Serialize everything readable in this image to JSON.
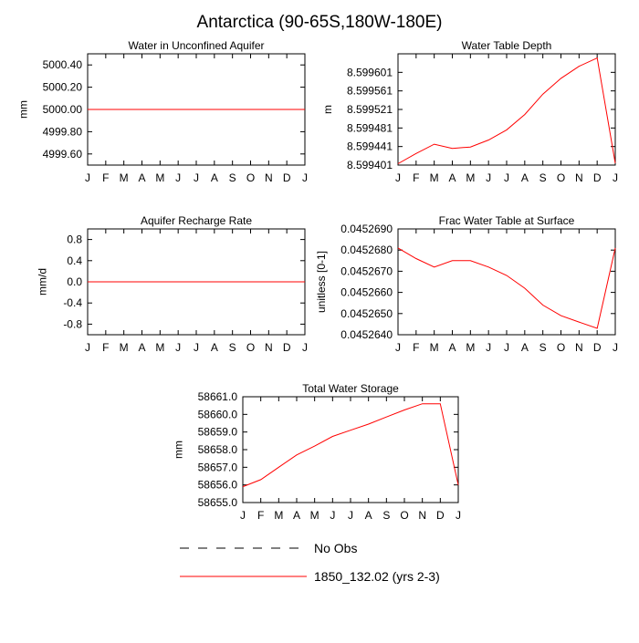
{
  "title": "Antarctica (90-65S,180W-180E)",
  "colors": {
    "model": "#ff0000",
    "obs": "#000000",
    "axis": "#000000"
  },
  "legend": {
    "items": [
      {
        "label": "No Obs",
        "style": "dashed",
        "color": "#000000"
      },
      {
        "label": "1850_132.02 (yrs 2-3)",
        "style": "solid",
        "color": "#ff0000"
      }
    ]
  },
  "chart_data": [
    {
      "type": "line",
      "title": "Water in Unconfined Aquifer",
      "ylabel": "mm",
      "xlabel": "",
      "categories": [
        "J",
        "F",
        "M",
        "A",
        "M",
        "J",
        "J",
        "A",
        "S",
        "O",
        "N",
        "D",
        "J"
      ],
      "ylim": [
        4999.5,
        5000.5
      ],
      "yticks": [
        4999.6,
        4999.8,
        5000.0,
        5000.2,
        5000.4
      ],
      "ytick_labels": [
        "4999.60",
        "4999.80",
        "5000.00",
        "5000.20",
        "5000.40"
      ],
      "series": [
        {
          "name": "1850_132.02 (yrs 2-3)",
          "values": [
            5000.0,
            5000.0,
            5000.0,
            5000.0,
            5000.0,
            5000.0,
            5000.0,
            5000.0,
            5000.0,
            5000.0,
            5000.0,
            5000.0,
            5000.0
          ]
        }
      ]
    },
    {
      "type": "line",
      "title": "Water Table Depth",
      "ylabel": "m",
      "xlabel": "",
      "categories": [
        "J",
        "F",
        "M",
        "A",
        "M",
        "J",
        "J",
        "A",
        "S",
        "O",
        "N",
        "D",
        "J"
      ],
      "ylim": [
        8.599401,
        8.599641
      ],
      "yticks": [
        8.599401,
        8.599441,
        8.599481,
        8.599521,
        8.599561,
        8.599601
      ],
      "ytick_labels": [
        "8.599401",
        "8.599441",
        "8.599481",
        "8.599521",
        "8.599561",
        "8.599601"
      ],
      "series": [
        {
          "name": "1850_132.02 (yrs 2-3)",
          "values": [
            8.599404,
            8.599426,
            8.599446,
            8.599437,
            8.59944,
            8.599455,
            8.599477,
            8.59951,
            8.599554,
            8.599588,
            8.599614,
            8.599632,
            8.599405
          ]
        }
      ]
    },
    {
      "type": "line",
      "title": "Aquifer Recharge Rate",
      "ylabel": "mm/d",
      "xlabel": "",
      "categories": [
        "J",
        "F",
        "M",
        "A",
        "M",
        "J",
        "J",
        "A",
        "S",
        "O",
        "N",
        "D",
        "J"
      ],
      "ylim": [
        -1.0,
        1.0
      ],
      "yticks": [
        -0.8,
        -0.4,
        0.0,
        0.4,
        0.8
      ],
      "ytick_labels": [
        "-0.8",
        "-0.4",
        "0.0",
        "0.4",
        "0.8"
      ],
      "series": [
        {
          "name": "1850_132.02 (yrs 2-3)",
          "values": [
            0,
            0,
            0,
            0,
            0,
            0,
            0,
            0,
            0,
            0,
            0,
            0,
            0
          ]
        }
      ]
    },
    {
      "type": "line",
      "title": "Frac Water Table at Surface",
      "ylabel": "unitless [0-1]",
      "xlabel": "",
      "categories": [
        "J",
        "F",
        "M",
        "A",
        "M",
        "J",
        "J",
        "A",
        "S",
        "O",
        "N",
        "D",
        "J"
      ],
      "ylim": [
        0.045264,
        0.045269
      ],
      "yticks": [
        0.045264,
        0.045265,
        0.045266,
        0.045267,
        0.045268,
        0.045269
      ],
      "ytick_labels": [
        "0.0452640",
        "0.0452650",
        "0.0452660",
        "0.0452670",
        "0.0452680",
        "0.0452690"
      ],
      "series": [
        {
          "name": "1850_132.02 (yrs 2-3)",
          "values": [
            0.0452681,
            0.0452676,
            0.0452672,
            0.0452675,
            0.0452675,
            0.0452672,
            0.0452668,
            0.0452662,
            0.0452654,
            0.0452649,
            0.0452646,
            0.0452643,
            0.0452681
          ]
        }
      ]
    },
    {
      "type": "line",
      "title": "Total Water Storage",
      "ylabel": "mm",
      "xlabel": "",
      "categories": [
        "J",
        "F",
        "M",
        "A",
        "M",
        "J",
        "J",
        "A",
        "S",
        "O",
        "N",
        "D",
        "J"
      ],
      "ylim": [
        58655.0,
        58661.0
      ],
      "yticks": [
        58655.0,
        58656.0,
        58657.0,
        58658.0,
        58659.0,
        58660.0,
        58661.0
      ],
      "ytick_labels": [
        "58655.0",
        "58656.0",
        "58657.0",
        "58658.0",
        "58659.0",
        "58660.0",
        "58661.0"
      ],
      "series": [
        {
          "name": "1850_132.02 (yrs 2-3)",
          "values": [
            58655.9,
            58656.3,
            58657.0,
            58657.7,
            58658.2,
            58658.75,
            58659.1,
            58659.45,
            58659.85,
            58660.25,
            58660.6,
            58660.6,
            58656.0
          ]
        }
      ]
    }
  ]
}
